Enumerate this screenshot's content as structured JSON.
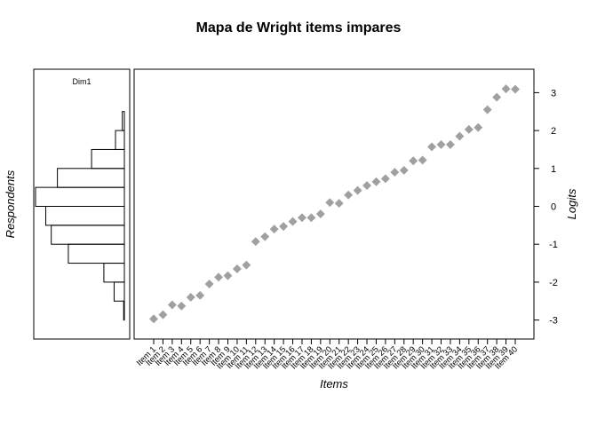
{
  "chart_data": {
    "type": "scatter",
    "title": "Mapa de Wright items impares",
    "xlabel": "Items",
    "ylabel": "Logits",
    "side_ylabel": "Respondents",
    "dimension_label": "Dim1",
    "ylim": [
      -3.5,
      3.6
    ],
    "yticks": [
      -3,
      -2,
      -1,
      0,
      1,
      2,
      3
    ],
    "marker_color": "#a0a0a0",
    "grid": false,
    "categories": [
      "Item 1",
      "Item 2",
      "Item 3",
      "Item 4",
      "Item 5",
      "Item 6",
      "Item 7",
      "Item 8",
      "Item 9",
      "Item 10",
      "Item 11",
      "Item 12",
      "Item 13",
      "Item 14",
      "Item 15",
      "Item 16",
      "Item 17",
      "Item 18",
      "Item 19",
      "Item 20",
      "Item 21",
      "Item 22",
      "Item 23",
      "Item 24",
      "Item 25",
      "Item 26",
      "Item 27",
      "Item 28",
      "Item 29",
      "Item 30",
      "Item 31",
      "Item 32",
      "Item 33",
      "Item 34",
      "Item 35",
      "Item 36",
      "Item 37",
      "Item 38",
      "Item 39",
      "Item 40"
    ],
    "values": [
      -2.97,
      -2.86,
      -2.6,
      -2.63,
      -2.4,
      -2.35,
      -2.05,
      -1.87,
      -1.83,
      -1.65,
      -1.55,
      -0.93,
      -0.8,
      -0.6,
      -0.53,
      -0.4,
      -0.3,
      -0.3,
      -0.2,
      0.1,
      0.08,
      0.3,
      0.42,
      0.55,
      0.65,
      0.73,
      0.9,
      0.95,
      1.2,
      1.22,
      1.57,
      1.63,
      1.63,
      1.85,
      2.03,
      2.08,
      2.55,
      2.88,
      3.1,
      3.09
    ],
    "respondent_histogram": {
      "bin_edges": [
        -3.0,
        -2.5,
        -2.0,
        -1.5,
        -1.0,
        -0.5,
        0.0,
        0.5,
        1.0,
        1.5,
        2.0,
        2.5
      ],
      "counts": [
        1,
        15,
        30,
        82,
        107,
        115,
        130,
        98,
        48,
        13,
        3
      ]
    }
  }
}
